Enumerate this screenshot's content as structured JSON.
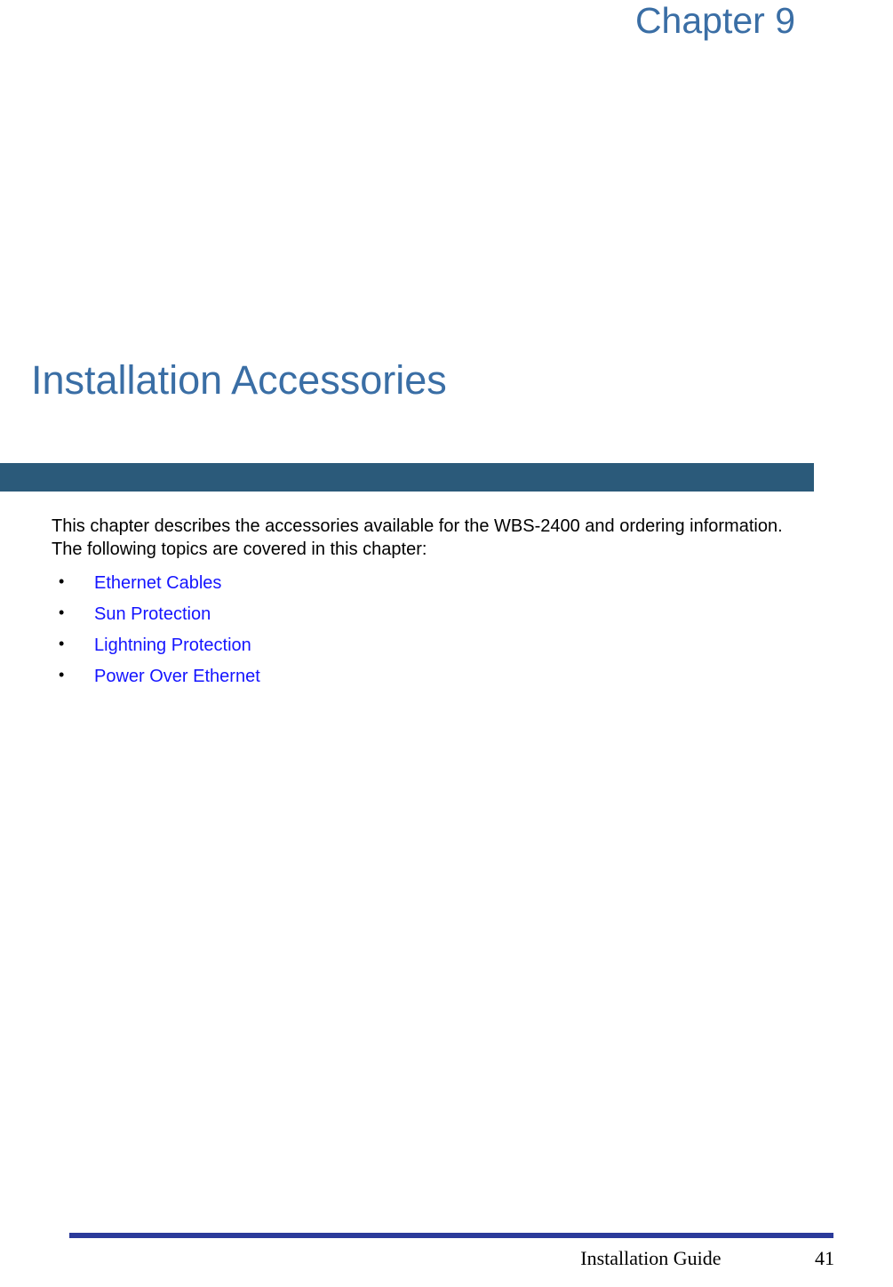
{
  "chapter": {
    "label": "Chapter 9",
    "color": "#3a6ea5",
    "fontsize": 41
  },
  "title": {
    "text": "Installation Accessories",
    "color": "#3a6ea5",
    "fontsize": 45
  },
  "divider": {
    "color": "#2b5a7a",
    "height": 32
  },
  "intro": {
    "text": "This chapter describes the accessories available for the WBS-2400 and ordering information. The following topics are covered in this chapter:",
    "color": "#000000",
    "fontsize": 20
  },
  "topics": {
    "items": [
      {
        "label": "Ethernet Cables"
      },
      {
        "label": "Sun Protection"
      },
      {
        "label": "Lightning Protection"
      },
      {
        "label": "Power Over Ethernet"
      }
    ],
    "link_color": "#1414ff",
    "bullet_color": "#000000",
    "fontsize": 20
  },
  "footer": {
    "line_color": "#2b3a9a",
    "guide_name": "Installation Guide",
    "page_number": "41",
    "text_color": "#000000",
    "fontsize": 22
  }
}
